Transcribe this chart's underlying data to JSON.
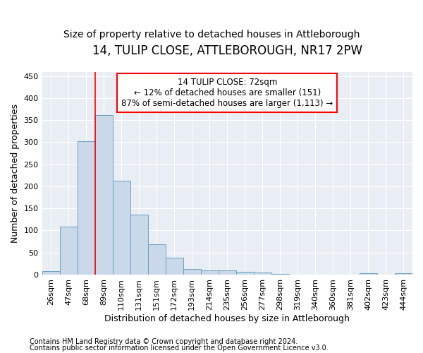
{
  "title": "14, TULIP CLOSE, ATTLEBOROUGH, NR17 2PW",
  "subtitle": "Size of property relative to detached houses in Attleborough",
  "xlabel": "Distribution of detached houses by size in Attleborough",
  "ylabel": "Number of detached properties",
  "footnote1": "Contains HM Land Registry data © Crown copyright and database right 2024.",
  "footnote2": "Contains public sector information licensed under the Open Government Licence v3.0.",
  "categories": [
    "26sqm",
    "47sqm",
    "68sqm",
    "89sqm",
    "110sqm",
    "131sqm",
    "151sqm",
    "172sqm",
    "193sqm",
    "214sqm",
    "235sqm",
    "256sqm",
    "277sqm",
    "298sqm",
    "319sqm",
    "340sqm",
    "360sqm",
    "381sqm",
    "402sqm",
    "423sqm",
    "444sqm"
  ],
  "values": [
    8,
    108,
    302,
    362,
    213,
    136,
    68,
    38,
    13,
    10,
    9,
    7,
    5,
    2,
    0,
    0,
    0,
    0,
    3,
    0,
    3
  ],
  "bar_color": "#c9d9ea",
  "bar_edge_color": "#6a9fc0",
  "ylim": [
    0,
    460
  ],
  "yticks": [
    0,
    50,
    100,
    150,
    200,
    250,
    300,
    350,
    400,
    450
  ],
  "property_label": "14 TULIP CLOSE: 72sqm",
  "annotation_line1": "← 12% of detached houses are smaller (151)",
  "annotation_line2": "87% of semi-detached houses are larger (1,113) →",
  "vline_x": 2.5,
  "background_color": "#ffffff",
  "plot_bg_color": "#e8eef4",
  "grid_color": "#ffffff",
  "title_fontsize": 12,
  "subtitle_fontsize": 10,
  "tick_fontsize": 8,
  "ylabel_fontsize": 9,
  "xlabel_fontsize": 9,
  "footnote_fontsize": 7
}
